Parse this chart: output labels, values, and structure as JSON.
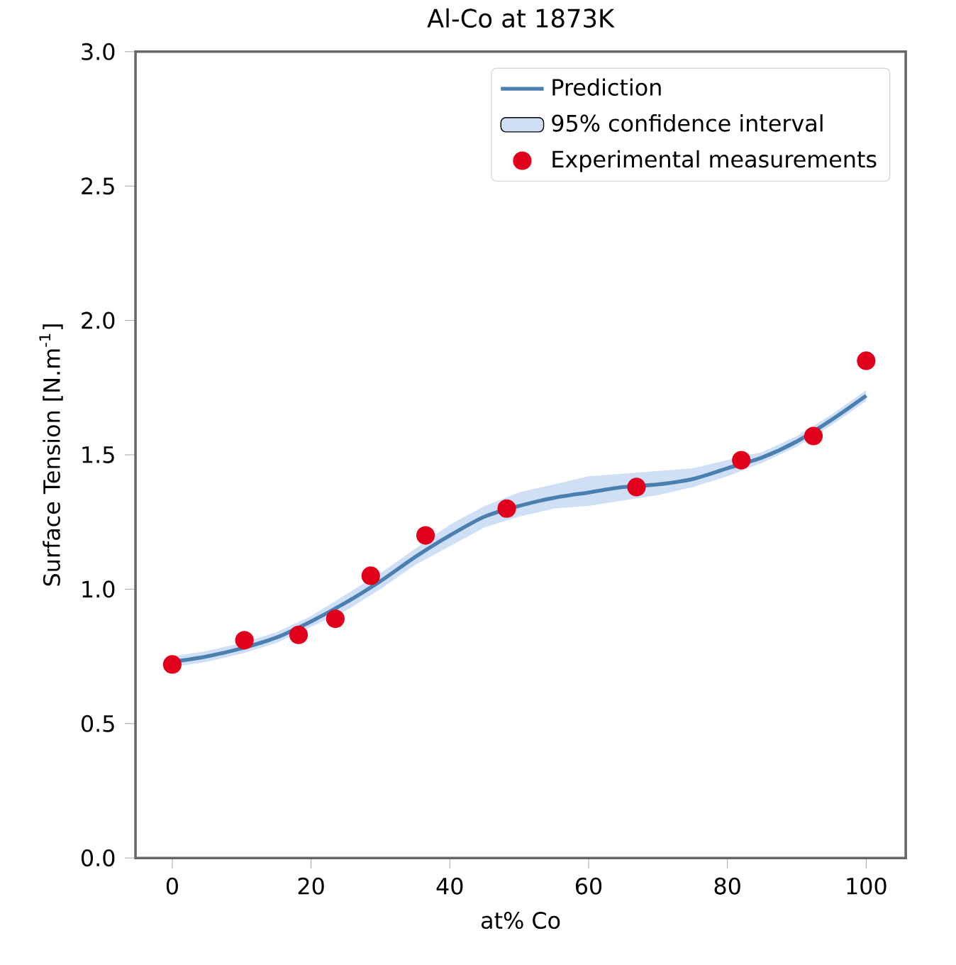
{
  "chart_data": {
    "type": "line",
    "title": "Al-Co at 1873K",
    "xlabel": "at% Co",
    "ylabel": "Surface Tension [N.m$^{-1}$]",
    "xlim": [
      -5.3,
      105.7
    ],
    "ylim": [
      0,
      3
    ],
    "xticks": [
      0,
      20,
      40,
      60,
      80,
      100
    ],
    "yticks": [
      {
        "value": 0,
        "label": "0.0"
      },
      {
        "value": 0.5,
        "label": "0.5"
      },
      {
        "value": 1,
        "label": "1.0"
      },
      {
        "value": 1.5,
        "label": "1.5"
      },
      {
        "value": 2,
        "label": "2.0"
      },
      {
        "value": 2.5,
        "label": "2.5"
      },
      {
        "value": 3,
        "label": "3.0"
      }
    ],
    "legend": "top right",
    "grid": false,
    "series": [
      {
        "name": "Prediction",
        "color": "#4a7fb0",
        "x": [
          0,
          5,
          10,
          15,
          20,
          25,
          30,
          35,
          40,
          45,
          50,
          55,
          60,
          65,
          70,
          75,
          80,
          85,
          90,
          95,
          100
        ],
        "values": [
          0.73,
          0.75,
          0.78,
          0.82,
          0.88,
          0.95,
          1.03,
          1.12,
          1.2,
          1.27,
          1.31,
          1.34,
          1.36,
          1.38,
          1.39,
          1.41,
          1.45,
          1.49,
          1.55,
          1.63,
          1.72
        ],
        "lower": [
          0.71,
          0.73,
          0.76,
          0.8,
          0.86,
          0.92,
          1.0,
          1.09,
          1.16,
          1.23,
          1.27,
          1.3,
          1.31,
          1.33,
          1.35,
          1.38,
          1.42,
          1.47,
          1.53,
          1.61,
          1.7
        ],
        "upper": [
          0.75,
          0.77,
          0.8,
          0.84,
          0.9,
          0.98,
          1.06,
          1.15,
          1.24,
          1.31,
          1.36,
          1.39,
          1.42,
          1.43,
          1.44,
          1.45,
          1.48,
          1.51,
          1.57,
          1.65,
          1.74
        ]
      },
      {
        "name": "95% confidence interval",
        "type": "area",
        "color": "#cfdff5"
      },
      {
        "name": "Experimental measurements",
        "type": "scatter",
        "color": "#e0001b",
        "marker": "circle",
        "x": [
          0,
          10.4,
          18.2,
          23.5,
          28.6,
          36.5,
          48.2,
          66.9,
          82,
          92.4,
          100
        ],
        "values": [
          0.72,
          0.81,
          0.83,
          0.89,
          1.05,
          1.2,
          1.3,
          1.38,
          1.48,
          1.57,
          1.85
        ]
      }
    ]
  }
}
